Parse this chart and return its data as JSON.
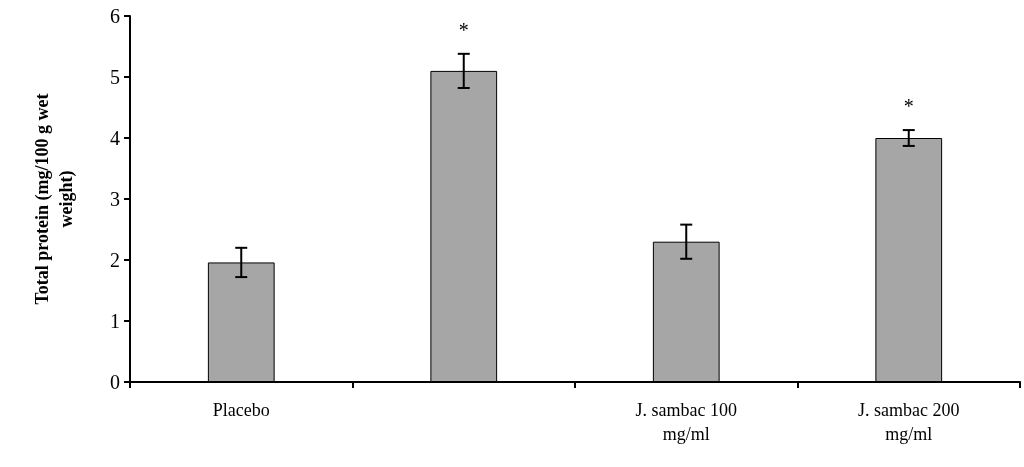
{
  "chart_data": {
    "type": "bar",
    "ylabel": "Total protein (mg/100 g wet weight)",
    "categories": [
      "Placebo",
      null,
      "J. sambac 100 mg/ml",
      "J. sambac 200 mg/ml"
    ],
    "values": [
      1.96,
      5.1,
      2.3,
      4.0
    ],
    "errors": [
      0.24,
      0.28,
      0.28,
      0.13
    ],
    "value_labels": [
      null,
      "*",
      null,
      "*"
    ],
    "color": "#a6a6a6",
    "ylim": [
      0,
      6
    ],
    "yticks": [
      0,
      1,
      2,
      3,
      4,
      5,
      6
    ],
    "grid": false
  }
}
